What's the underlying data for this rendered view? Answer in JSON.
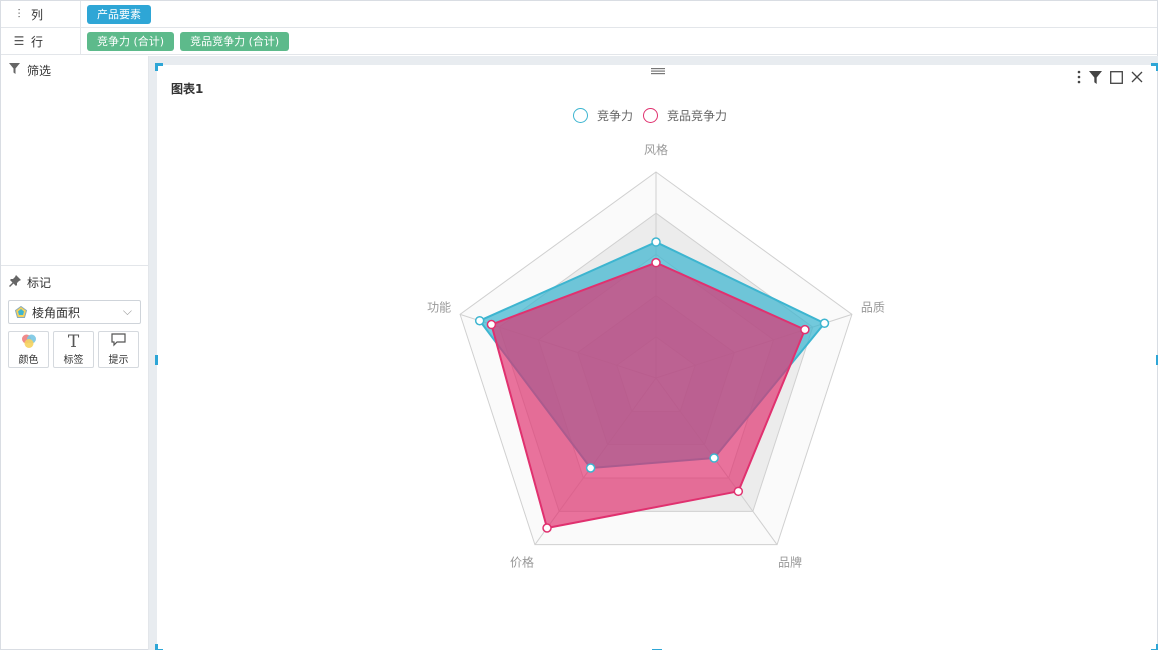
{
  "shelves": {
    "columns": {
      "label": "列",
      "icon": "columns-icon",
      "pills": [
        "产品要素"
      ]
    },
    "rows": {
      "label": "行",
      "icon": "list-icon",
      "pills": [
        "竞争力 (合计)",
        "竞品竞争力 (合计)"
      ]
    }
  },
  "filter_panel": {
    "title": "筛选",
    "icon": "filter-icon"
  },
  "marks_panel": {
    "title": "标记",
    "icon": "pin-icon",
    "chart_type": "棱角面积",
    "buttons": [
      {
        "label": "颜色",
        "icon": "color-icon"
      },
      {
        "label": "标签",
        "icon": "text-icon"
      },
      {
        "label": "提示",
        "icon": "tooltip-icon"
      }
    ]
  },
  "card": {
    "title": "图表1",
    "tools": [
      "more-icon",
      "filter-icon",
      "maximize-icon",
      "close-icon"
    ]
  },
  "colors": {
    "accent": "#2ea6d6",
    "series1": "#3db5d0",
    "series2": "#e0316f"
  },
  "chart_data": {
    "type": "radar",
    "title": "",
    "axes": [
      "风格",
      "品质",
      "品牌",
      "价格",
      "功能"
    ],
    "max": 5,
    "levels": 5,
    "grid": true,
    "legend": "top-center",
    "series": [
      {
        "name": "竞争力",
        "values": [
          3.3,
          4.3,
          2.4,
          2.7,
          4.5
        ],
        "color": "#3db5d0"
      },
      {
        "name": "竞品竞争力",
        "values": [
          2.8,
          3.8,
          3.4,
          4.5,
          4.2
        ],
        "color": "#e0316f"
      }
    ]
  }
}
